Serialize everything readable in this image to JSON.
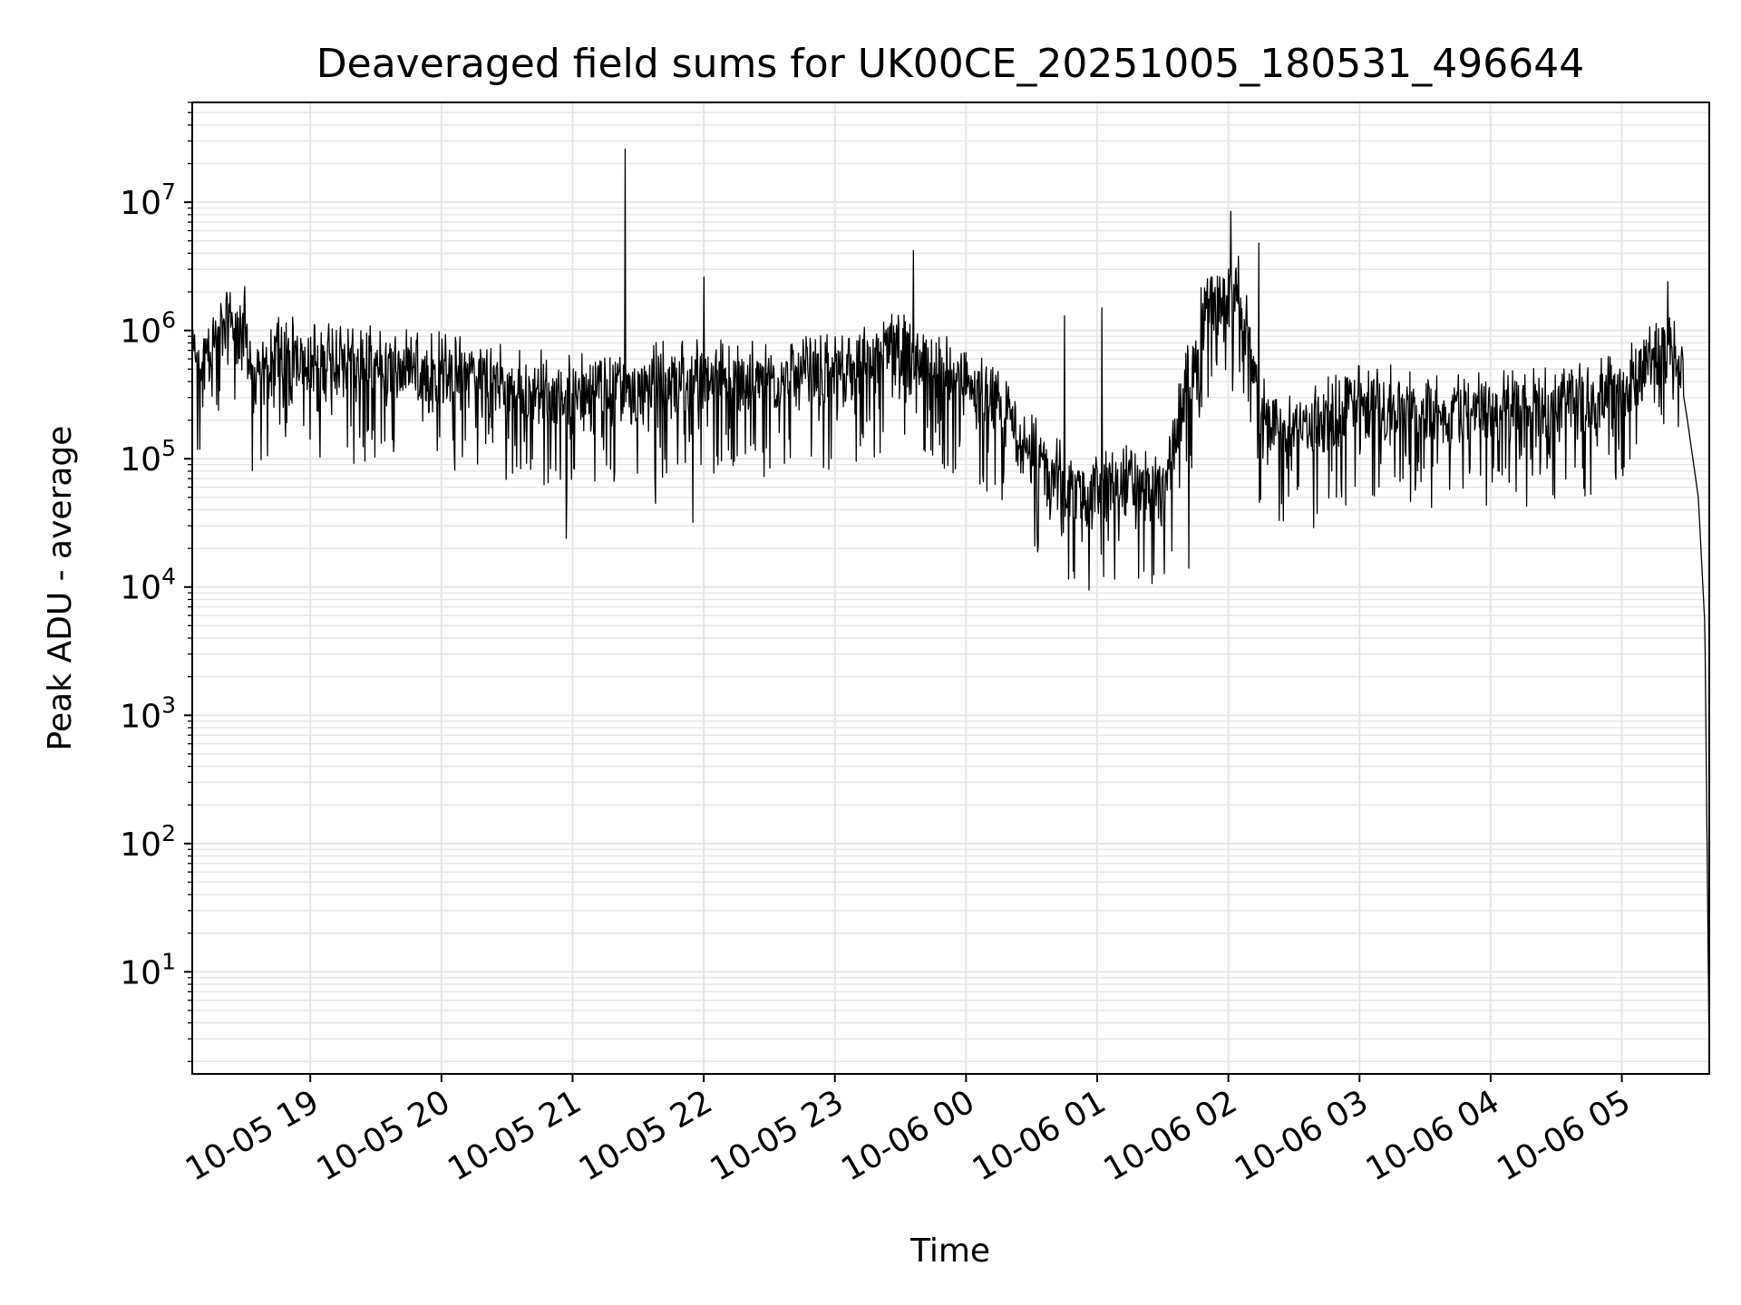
{
  "chart_data": {
    "type": "line",
    "title": "Deaveraged field sums for UK00CE_20251005_180531_496644",
    "xlabel": "Time",
    "ylabel": "Peak ADU - average",
    "yscale": "log",
    "grid": true,
    "line_color": "#000000",
    "grid_color": "#e6e6e6",
    "xlim": [
      "2025-10-05 18:06",
      "2025-10-06 05:40"
    ],
    "ylim": [
      1.6,
      60000000
    ],
    "x_ticks": [
      {
        "value": "2025-10-05 19:00",
        "label": "10-05 19"
      },
      {
        "value": "2025-10-05 20:00",
        "label": "10-05 20"
      },
      {
        "value": "2025-10-05 21:00",
        "label": "10-05 21"
      },
      {
        "value": "2025-10-05 22:00",
        "label": "10-05 22"
      },
      {
        "value": "2025-10-05 23:00",
        "label": "10-05 23"
      },
      {
        "value": "2025-10-06 00:00",
        "label": "10-06 00"
      },
      {
        "value": "2025-10-06 01:00",
        "label": "10-06 01"
      },
      {
        "value": "2025-10-06 02:00",
        "label": "10-06 02"
      },
      {
        "value": "2025-10-06 03:00",
        "label": "10-06 03"
      },
      {
        "value": "2025-10-06 04:00",
        "label": "10-06 04"
      },
      {
        "value": "2025-10-06 05:00",
        "label": "10-06 05"
      }
    ],
    "y_ticks": [
      {
        "value": 10,
        "base": "10",
        "exp": "1"
      },
      {
        "value": 100,
        "base": "10",
        "exp": "2"
      },
      {
        "value": 1000,
        "base": "10",
        "exp": "3"
      },
      {
        "value": 10000,
        "base": "10",
        "exp": "4"
      },
      {
        "value": 100000,
        "base": "10",
        "exp": "5"
      },
      {
        "value": 1000000,
        "base": "10",
        "exp": "6"
      },
      {
        "value": 10000000,
        "base": "10",
        "exp": "7"
      }
    ],
    "series": [
      {
        "points": [
          [
            "2025-10-05 18:06",
            450000
          ],
          [
            "2025-10-05 18:15",
            700000
          ],
          [
            "2025-10-05 18:25",
            1000000
          ],
          [
            "2025-10-05 18:30",
            800000
          ],
          [
            "2025-10-05 18:35",
            300000
          ],
          [
            "2025-10-05 18:45",
            600000
          ],
          [
            "2025-10-05 19:00",
            550000
          ],
          [
            "2025-10-05 19:30",
            500000
          ],
          [
            "2025-10-05 20:00",
            450000
          ],
          [
            "2025-10-05 20:30",
            350000
          ],
          [
            "2025-10-05 21:00",
            300000
          ],
          [
            "2025-10-05 21:20",
            320000
          ],
          [
            "2025-10-05 21:40",
            380000
          ],
          [
            "2025-10-05 22:00",
            400000
          ],
          [
            "2025-10-05 22:30",
            380000
          ],
          [
            "2025-10-05 23:00",
            420000
          ],
          [
            "2025-10-05 23:30",
            700000
          ],
          [
            "2025-10-05 23:50",
            450000
          ],
          [
            "2025-10-06 00:10",
            280000
          ],
          [
            "2025-10-06 00:30",
            100000
          ],
          [
            "2025-10-06 00:50",
            50000
          ],
          [
            "2025-10-06 01:10",
            60000
          ],
          [
            "2025-10-06 01:30",
            50000
          ],
          [
            "2025-10-06 01:50",
            1500000
          ],
          [
            "2025-10-06 02:05",
            2000000
          ],
          [
            "2025-10-06 02:15",
            200000
          ],
          [
            "2025-10-06 02:30",
            150000
          ],
          [
            "2025-10-06 03:00",
            250000
          ],
          [
            "2025-10-06 03:30",
            230000
          ],
          [
            "2025-10-06 04:00",
            220000
          ],
          [
            "2025-10-06 04:30",
            250000
          ],
          [
            "2025-10-06 05:00",
            300000
          ],
          [
            "2025-10-06 05:15",
            600000
          ],
          [
            "2025-10-06 05:25",
            700000
          ],
          [
            "2025-10-06 05:30",
            200000
          ],
          [
            "2025-10-06 05:35",
            50000
          ],
          [
            "2025-10-06 05:38",
            5000
          ],
          [
            "2025-10-06 05:40",
            2
          ]
        ],
        "spikes": [
          [
            "2025-10-05 18:30",
            2200000
          ],
          [
            "2025-10-05 21:24",
            26000000
          ],
          [
            "2025-10-05 22:00",
            2600000
          ],
          [
            "2025-10-05 23:36",
            4200000
          ],
          [
            "2025-10-06 00:45",
            1300000
          ],
          [
            "2025-10-06 01:02",
            1500000
          ],
          [
            "2025-10-06 02:01",
            8500000
          ],
          [
            "2025-10-06 02:14",
            4800000
          ],
          [
            "2025-10-06 05:21",
            2400000
          ]
        ],
        "dips": [
          [
            "2025-10-05 20:57",
            24000
          ],
          [
            "2025-10-05 21:38",
            45000
          ],
          [
            "2025-10-05 21:55",
            32000
          ],
          [
            "2025-10-06 00:33",
            21000
          ],
          [
            "2025-10-06 01:08",
            11500
          ],
          [
            "2025-10-06 01:42",
            14000
          ],
          [
            "2025-10-06 02:39",
            29000
          ]
        ]
      }
    ]
  }
}
